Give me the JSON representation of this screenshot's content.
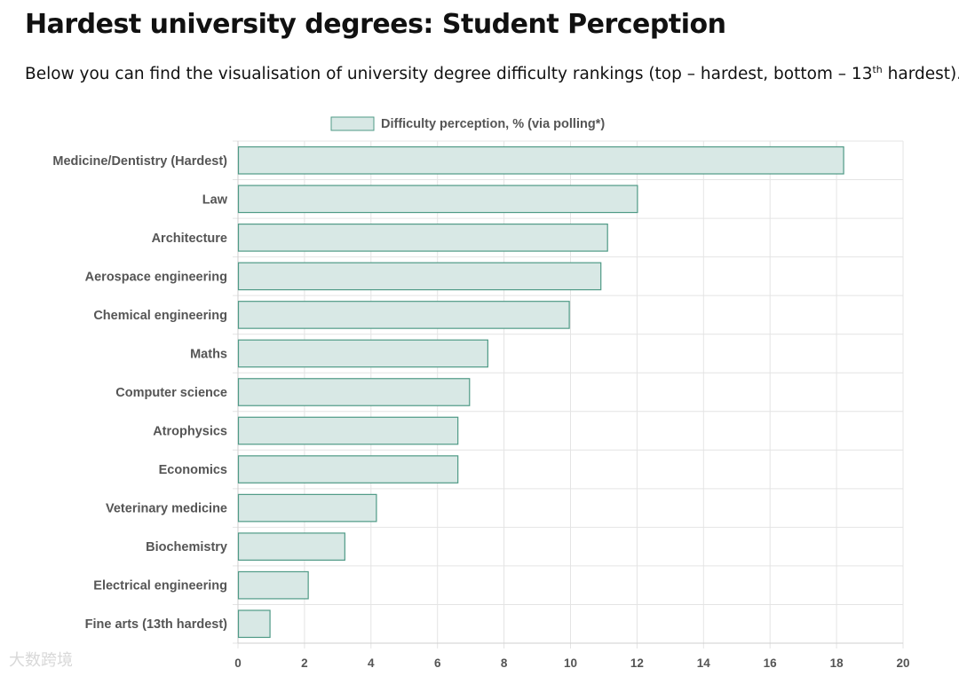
{
  "page": {
    "title": "Hardest university degrees: Student Perception",
    "subtitle_pre": "Below you can find the visualisation of university degree difficulty rankings (top – hardest, bottom – 13",
    "subtitle_sup": "th",
    "subtitle_post": " hardest).",
    "watermark": "大数跨境"
  },
  "chart_data": {
    "type": "bar",
    "orientation": "horizontal",
    "categories": [
      "Medicine/Dentistry (Hardest)",
      "Law",
      "Architecture",
      "Aerospace engineering",
      "Chemical engineering",
      "Maths",
      "Computer science",
      "Atrophysics",
      "Economics",
      "Veterinary medicine",
      "Biochemistry",
      "Electrical engineering",
      "Fine arts (13th hardest)"
    ],
    "series": [
      {
        "name": "Difficulty perception, % (via polling*)",
        "values": [
          18.2,
          12.0,
          11.1,
          10.9,
          9.95,
          7.5,
          6.95,
          6.6,
          6.6,
          4.15,
          3.2,
          2.1,
          0.95
        ]
      }
    ],
    "xlim": [
      0,
      20
    ],
    "xticks": [
      0,
      2,
      4,
      6,
      8,
      10,
      12,
      14,
      16,
      18,
      20
    ],
    "grid": true,
    "legend_position": "top",
    "colors": {
      "bar_fill": "#d8e8e5",
      "bar_stroke": "#4f9a86",
      "grid": "#e4e4e4",
      "text": "#555555"
    }
  }
}
